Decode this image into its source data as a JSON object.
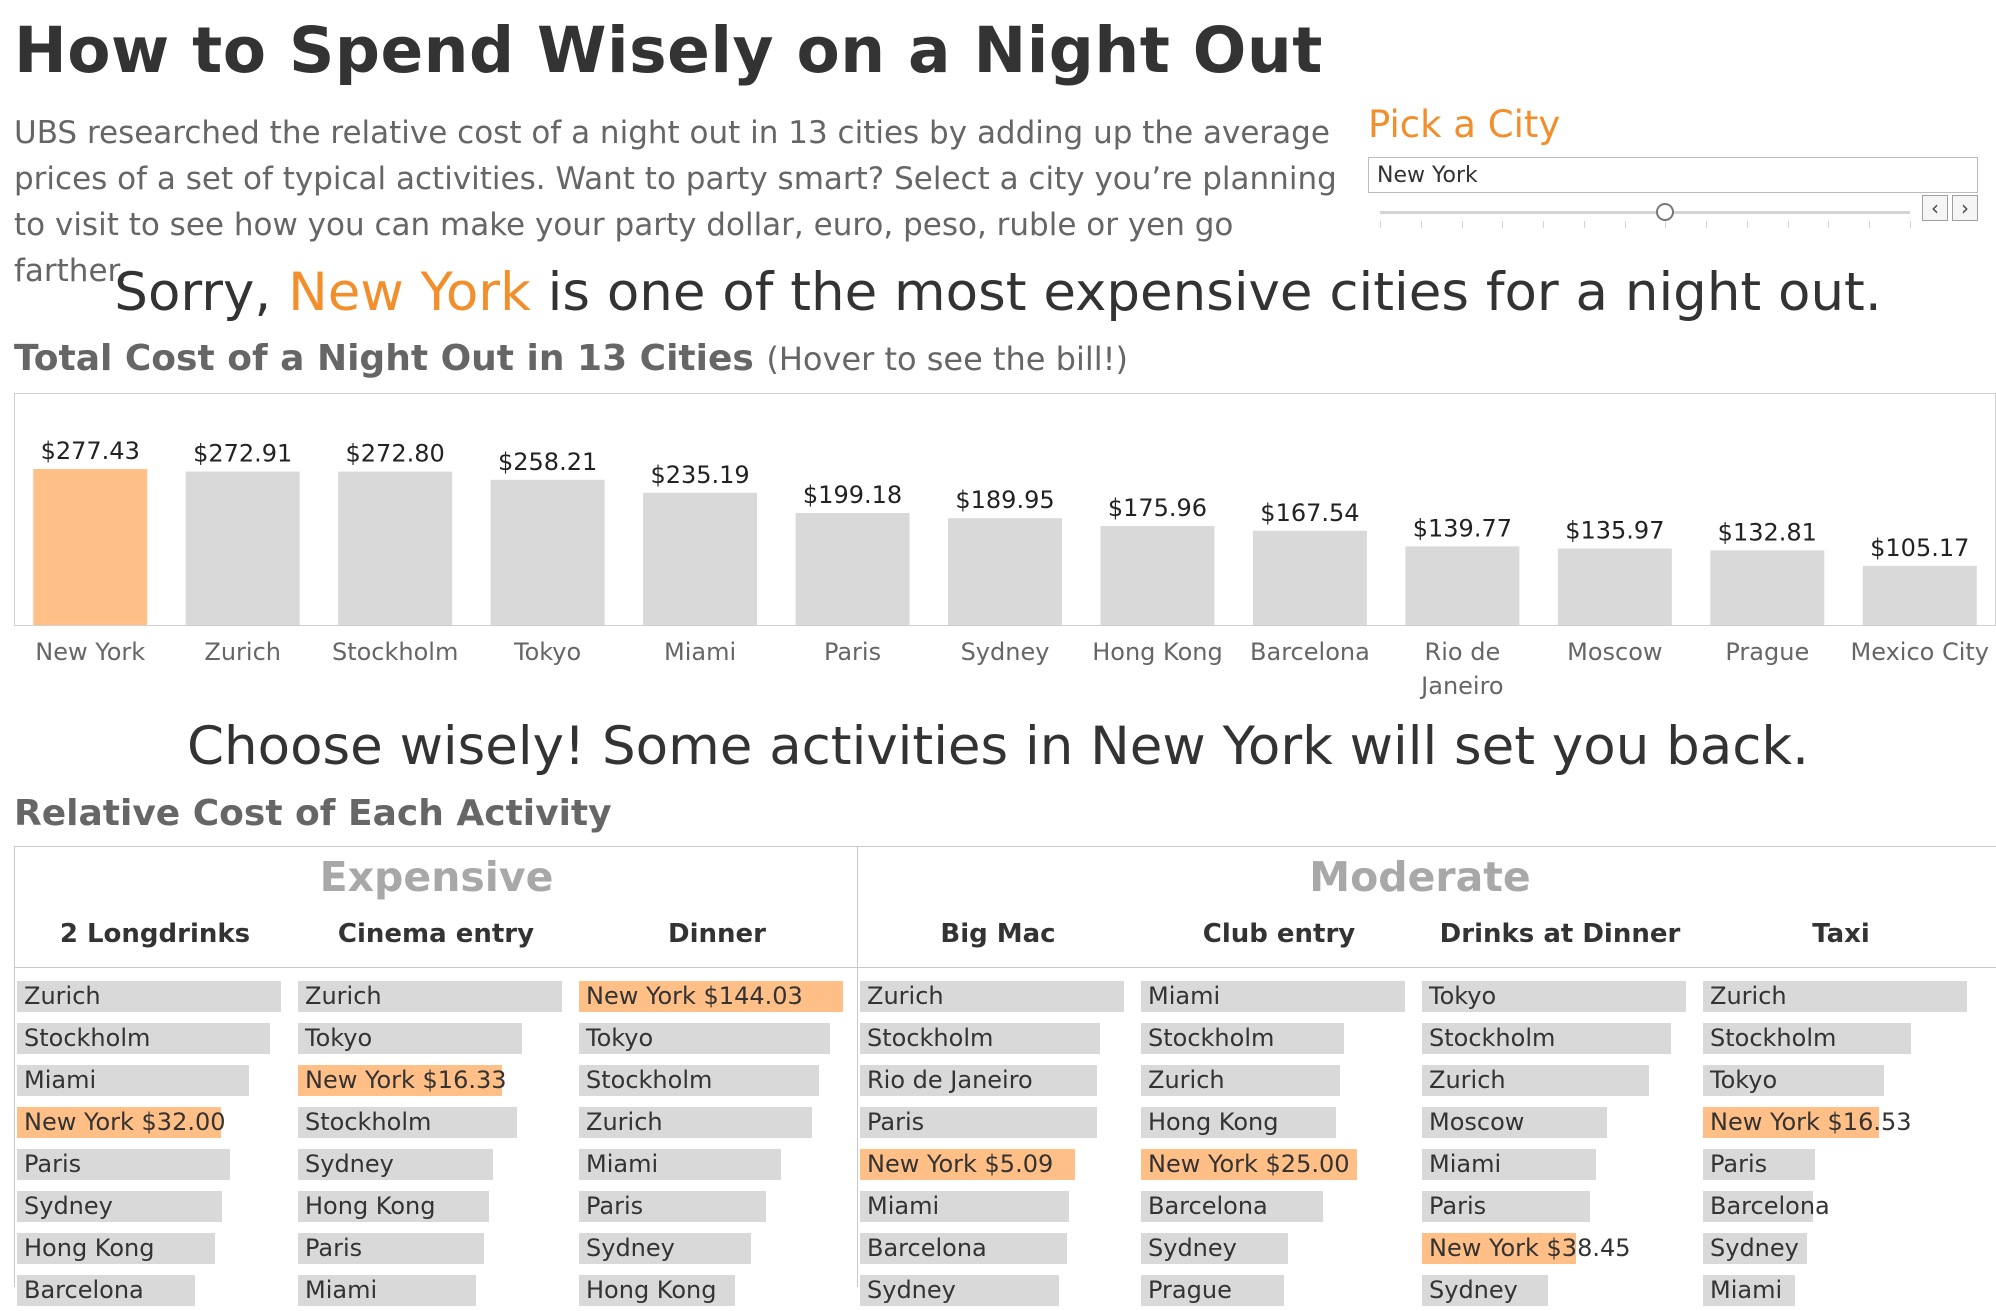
{
  "page": {
    "title": "How to Spend Wisely on a Night Out",
    "intro": "UBS researched the relative cost of a night out in 13 cities by adding up the average prices of a set of typical activities. Want to party smart? Select a city you’re planning to visit to see how you can make your party dollar, euro, peso, ruble or yen go farther."
  },
  "filter": {
    "label": "Pick a City",
    "selected": "New York",
    "slider_position": 7,
    "slider_steps": 14,
    "prev_icon": "chevron-left-icon",
    "next_icon": "chevron-right-icon"
  },
  "headline1": {
    "before": "Sorry, ",
    "city": "New York",
    "after": " is one of the most expensive cities for a night out."
  },
  "headline2": "Choose wisely! Some activities in New York will set you back.",
  "colors": {
    "accent": "#f28e2b",
    "highlight": "#ffbf86",
    "bar": "#d9d9d9",
    "muted_heading": "#a8a8a8"
  },
  "chart_data": [
    {
      "type": "bar",
      "title": "Total Cost of a Night Out in 13 Cities",
      "note": "(Hover to see the bill!)",
      "categories": [
        "New York",
        "Zurich",
        "Stockholm",
        "Tokyo",
        "Miami",
        "Paris",
        "Sydney",
        "Hong Kong",
        "Barcelona",
        "Rio de Janeiro",
        "Moscow",
        "Prague",
        "Mexico City"
      ],
      "category_lines": [
        [
          "New York"
        ],
        [
          "Zurich"
        ],
        [
          "Stockholm"
        ],
        [
          "Tokyo"
        ],
        [
          "Miami"
        ],
        [
          "Paris"
        ],
        [
          "Sydney"
        ],
        [
          "Hong Kong"
        ],
        [
          "Barcelona"
        ],
        [
          "Rio de",
          "Janeiro"
        ],
        [
          "Moscow"
        ],
        [
          "Prague"
        ],
        [
          "Mexico City"
        ]
      ],
      "values": [
        277.43,
        272.91,
        272.8,
        258.21,
        235.19,
        199.18,
        189.95,
        175.96,
        167.54,
        139.77,
        135.97,
        132.81,
        105.17
      ],
      "value_labels": [
        "$277.43",
        "$272.91",
        "$272.80",
        "$258.21",
        "$235.19",
        "$199.18",
        "$189.95",
        "$175.96",
        "$167.54",
        "$139.77",
        "$135.97",
        "$132.81",
        "$105.17"
      ],
      "highlight": "New York",
      "ylim": [
        0,
        400
      ],
      "grid": false
    },
    {
      "type": "bar",
      "orientation": "horizontal",
      "title": "Relative Cost of Each Activity",
      "groups": [
        {
          "name": "Expensive",
          "activities": [
            {
              "name": "2 Longdrinks",
              "rows": [
                {
                  "city": "Zurich",
                  "value": 41.5
                },
                {
                  "city": "Stockholm",
                  "value": 39.8
                },
                {
                  "city": "Miami",
                  "value": 36.5
                },
                {
                  "city": "New York",
                  "value": 32.0,
                  "label": "New York $32.00"
                },
                {
                  "city": "Paris",
                  "value": 33.5
                },
                {
                  "city": "Sydney",
                  "value": 32.2
                },
                {
                  "city": "Hong Kong",
                  "value": 31.2
                },
                {
                  "city": "Barcelona",
                  "value": 28.0
                }
              ]
            },
            {
              "name": "Cinema entry",
              "rows": [
                {
                  "city": "Zurich",
                  "value": 21.1
                },
                {
                  "city": "Tokyo",
                  "value": 17.9
                },
                {
                  "city": "New York",
                  "value": 16.33,
                  "label": "New York $16.33"
                },
                {
                  "city": "Stockholm",
                  "value": 17.5
                },
                {
                  "city": "Sydney",
                  "value": 15.6
                },
                {
                  "city": "Hong Kong",
                  "value": 15.3
                },
                {
                  "city": "Paris",
                  "value": 14.9
                },
                {
                  "city": "Miami",
                  "value": 14.2
                }
              ]
            },
            {
              "name": "Dinner",
              "rows": [
                {
                  "city": "New York",
                  "value": 144.03,
                  "label": "New York $144.03"
                },
                {
                  "city": "Tokyo",
                  "value": 137.0
                },
                {
                  "city": "Stockholm",
                  "value": 131.0
                },
                {
                  "city": "Zurich",
                  "value": 127.0
                },
                {
                  "city": "Miami",
                  "value": 110.0
                },
                {
                  "city": "Paris",
                  "value": 102.0
                },
                {
                  "city": "Sydney",
                  "value": 94.0
                },
                {
                  "city": "Hong Kong",
                  "value": 85.0
                }
              ]
            }
          ]
        },
        {
          "name": "Moderate",
          "activities": [
            {
              "name": "Big Mac",
              "rows": [
                {
                  "city": "Zurich",
                  "value": 6.25
                },
                {
                  "city": "Stockholm",
                  "value": 5.68
                },
                {
                  "city": "Rio de Janeiro",
                  "value": 5.6
                },
                {
                  "city": "Paris",
                  "value": 5.6
                },
                {
                  "city": "New York",
                  "value": 5.09,
                  "label": "New York $5.09"
                },
                {
                  "city": "Miami",
                  "value": 4.95
                },
                {
                  "city": "Barcelona",
                  "value": 4.9
                },
                {
                  "city": "Sydney",
                  "value": 4.7
                }
              ]
            },
            {
              "name": "Club entry",
              "rows": [
                {
                  "city": "Miami",
                  "value": 30.5
                },
                {
                  "city": "Stockholm",
                  "value": 23.5
                },
                {
                  "city": "Zurich",
                  "value": 23.0
                },
                {
                  "city": "Hong Kong",
                  "value": 22.5
                },
                {
                  "city": "New York",
                  "value": 25.0,
                  "label": "New York $25.00"
                },
                {
                  "city": "Barcelona",
                  "value": 21.0
                },
                {
                  "city": "Sydney",
                  "value": 17.0
                },
                {
                  "city": "Prague",
                  "value": 16.5
                }
              ]
            },
            {
              "name": "Drinks at Dinner",
              "rows": [
                {
                  "city": "Tokyo",
                  "value": 66.0
                },
                {
                  "city": "Stockholm",
                  "value": 62.3
                },
                {
                  "city": "Zurich",
                  "value": 56.8
                },
                {
                  "city": "Moscow",
                  "value": 46.3
                },
                {
                  "city": "Miami",
                  "value": 43.6
                },
                {
                  "city": "Paris",
                  "value": 42.0
                },
                {
                  "city": "New York",
                  "value": 38.45,
                  "label": "New York $38.45"
                },
                {
                  "city": "Sydney",
                  "value": 31.5
                }
              ]
            },
            {
              "name": "Taxi",
              "rows": [
                {
                  "city": "Zurich",
                  "value": 24.8
                },
                {
                  "city": "Stockholm",
                  "value": 19.5
                },
                {
                  "city": "Tokyo",
                  "value": 17.0
                },
                {
                  "city": "New York",
                  "value": 16.53,
                  "label": "New York $16.53"
                },
                {
                  "city": "Paris",
                  "value": 10.5
                },
                {
                  "city": "Barcelona",
                  "value": 10.3
                },
                {
                  "city": "Sydney",
                  "value": 9.8
                },
                {
                  "city": "Miami",
                  "value": 8.6
                }
              ]
            }
          ]
        }
      ]
    }
  ]
}
